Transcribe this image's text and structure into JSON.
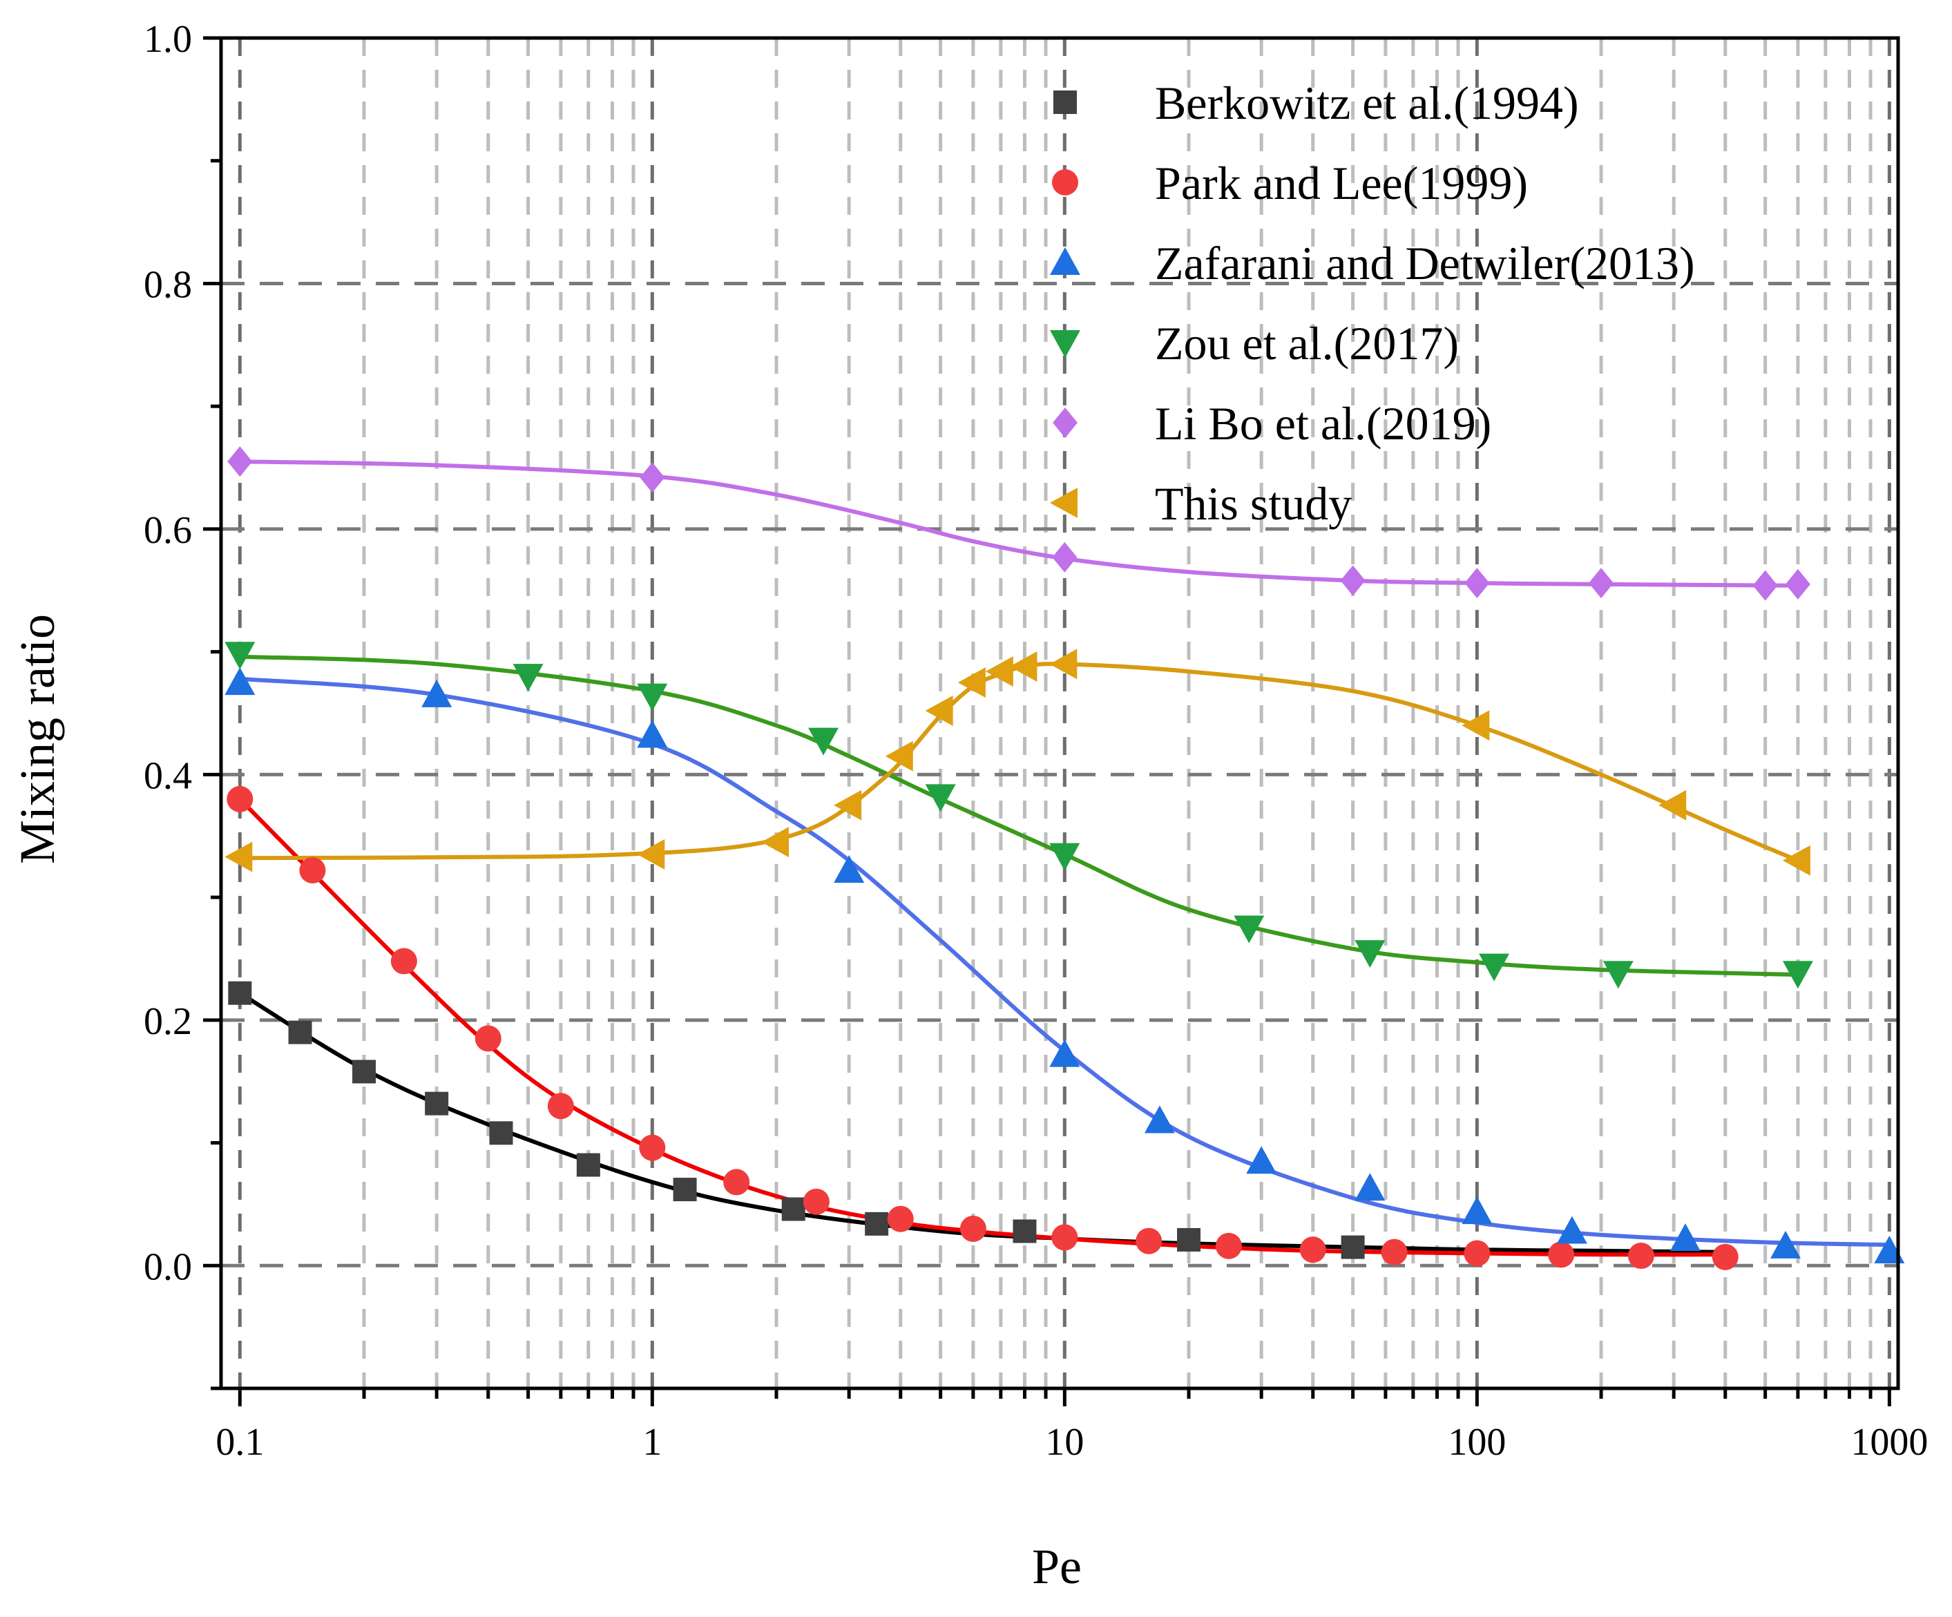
{
  "chart_data": {
    "type": "scatter",
    "xscale": "log",
    "xlabel": "Pe",
    "ylabel": "Mixing ratio",
    "xlim": [
      0.09,
      1050
    ],
    "ylim": [
      -0.1,
      1.0
    ],
    "xticks": [
      0.1,
      1,
      10,
      100,
      1000
    ],
    "xtick_labels": [
      "0.1",
      "1",
      "10",
      "100",
      "1000"
    ],
    "yticks": [
      0.0,
      0.2,
      0.4,
      0.6,
      0.8,
      1.0
    ],
    "ytick_labels": [
      "0.0",
      "0.2",
      "0.4",
      "0.6",
      "0.8",
      "1.0"
    ],
    "grid": true,
    "legend_position": "top-right",
    "series": [
      {
        "name": "Berkowitz et al.(1994)",
        "marker": "square",
        "color": "#404040",
        "line_color": "#000000",
        "x": [
          0.1,
          0.14,
          0.2,
          0.3,
          0.43,
          0.7,
          1.2,
          2.2,
          3.5,
          8,
          20,
          50
        ],
        "y": [
          0.222,
          0.19,
          0.158,
          0.132,
          0.108,
          0.082,
          0.062,
          0.046,
          0.034,
          0.028,
          0.021,
          0.015
        ],
        "curve_x": [
          0.1,
          0.2,
          0.4,
          1,
          2,
          5,
          10,
          20,
          50,
          100,
          200,
          400
        ],
        "curve_y": [
          0.222,
          0.16,
          0.115,
          0.068,
          0.045,
          0.028,
          0.022,
          0.018,
          0.015,
          0.013,
          0.012,
          0.011
        ]
      },
      {
        "name": "Park and Lee(1999)",
        "marker": "circle",
        "color": "#f03c3c",
        "line_color": "#f00000",
        "x": [
          0.1,
          0.15,
          0.25,
          0.4,
          0.6,
          1,
          1.6,
          2.5,
          4,
          6,
          10,
          16,
          25,
          40,
          63,
          100,
          160,
          250,
          400
        ],
        "y": [
          0.38,
          0.322,
          0.248,
          0.185,
          0.13,
          0.096,
          0.068,
          0.052,
          0.038,
          0.03,
          0.023,
          0.02,
          0.016,
          0.013,
          0.011,
          0.01,
          0.009,
          0.008,
          0.007
        ],
        "curve_x": [
          0.1,
          0.15,
          0.25,
          0.4,
          0.6,
          1,
          1.6,
          2.5,
          4,
          6,
          10,
          20,
          40,
          100,
          200,
          400
        ],
        "curve_y": [
          0.38,
          0.32,
          0.245,
          0.18,
          0.135,
          0.095,
          0.067,
          0.048,
          0.035,
          0.028,
          0.022,
          0.016,
          0.012,
          0.01,
          0.009,
          0.009
        ]
      },
      {
        "name": "Zafarani and Detwiler(2013)",
        "marker": "triangle-up",
        "color": "#1e6fe0",
        "line_color": "#5070e8",
        "x": [
          0.1,
          0.3,
          1,
          3,
          10,
          17,
          30,
          55,
          100,
          170,
          320,
          560,
          1000
        ],
        "y": [
          0.475,
          0.465,
          0.432,
          0.322,
          0.172,
          0.118,
          0.085,
          0.063,
          0.044,
          0.028,
          0.022,
          0.016,
          0.012
        ],
        "curve_x": [
          0.1,
          0.3,
          1,
          2,
          3,
          5,
          10,
          20,
          50,
          100,
          200,
          500,
          1000
        ],
        "curve_y": [
          0.478,
          0.465,
          0.425,
          0.37,
          0.33,
          0.265,
          0.175,
          0.105,
          0.055,
          0.035,
          0.025,
          0.019,
          0.017
        ]
      },
      {
        "name": "Zou et al.(2017)",
        "marker": "triangle-down",
        "color": "#20a040",
        "line_color": "#3a9a1c",
        "x": [
          0.1,
          0.5,
          1,
          2.6,
          5,
          10,
          28,
          55,
          110,
          220,
          600
        ],
        "y": [
          0.498,
          0.48,
          0.464,
          0.428,
          0.382,
          0.334,
          0.275,
          0.255,
          0.244,
          0.238,
          0.238
        ],
        "curve_x": [
          0.1,
          0.3,
          1,
          2,
          3,
          5,
          10,
          20,
          50,
          100,
          200,
          600
        ],
        "curve_y": [
          0.496,
          0.49,
          0.468,
          0.44,
          0.415,
          0.38,
          0.335,
          0.29,
          0.258,
          0.247,
          0.241,
          0.237
        ]
      },
      {
        "name": "Li Bo et al.(2019)",
        "marker": "diamond",
        "color": "#c070e8",
        "line_color": "#c070e8",
        "x": [
          0.1,
          1,
          10,
          50,
          100,
          200,
          500,
          600
        ],
        "y": [
          0.655,
          0.642,
          0.577,
          0.558,
          0.556,
          0.556,
          0.554,
          0.555
        ],
        "curve_x": [
          0.1,
          0.3,
          1,
          2,
          4,
          6,
          10,
          20,
          50,
          100,
          200,
          600
        ],
        "curve_y": [
          0.655,
          0.652,
          0.643,
          0.628,
          0.605,
          0.59,
          0.576,
          0.565,
          0.558,
          0.556,
          0.555,
          0.554
        ]
      },
      {
        "name": "This study",
        "marker": "triangle-left",
        "color": "#e0a010",
        "line_color": "#d89a10",
        "x": [
          0.1,
          1,
          2,
          3,
          4,
          5,
          6,
          7,
          8,
          10,
          100,
          300,
          600
        ],
        "y": [
          0.333,
          0.335,
          0.345,
          0.375,
          0.415,
          0.452,
          0.475,
          0.484,
          0.488,
          0.49,
          0.44,
          0.375,
          0.33
        ],
        "curve_x": [
          0.1,
          0.5,
          1,
          1.5,
          2,
          2.5,
          3,
          3.5,
          4,
          5,
          6,
          7,
          8,
          10,
          20,
          50,
          100,
          200,
          400,
          600
        ],
        "curve_y": [
          0.332,
          0.333,
          0.336,
          0.34,
          0.347,
          0.358,
          0.374,
          0.392,
          0.41,
          0.448,
          0.472,
          0.482,
          0.488,
          0.49,
          0.484,
          0.468,
          0.44,
          0.4,
          0.355,
          0.33
        ]
      }
    ]
  }
}
